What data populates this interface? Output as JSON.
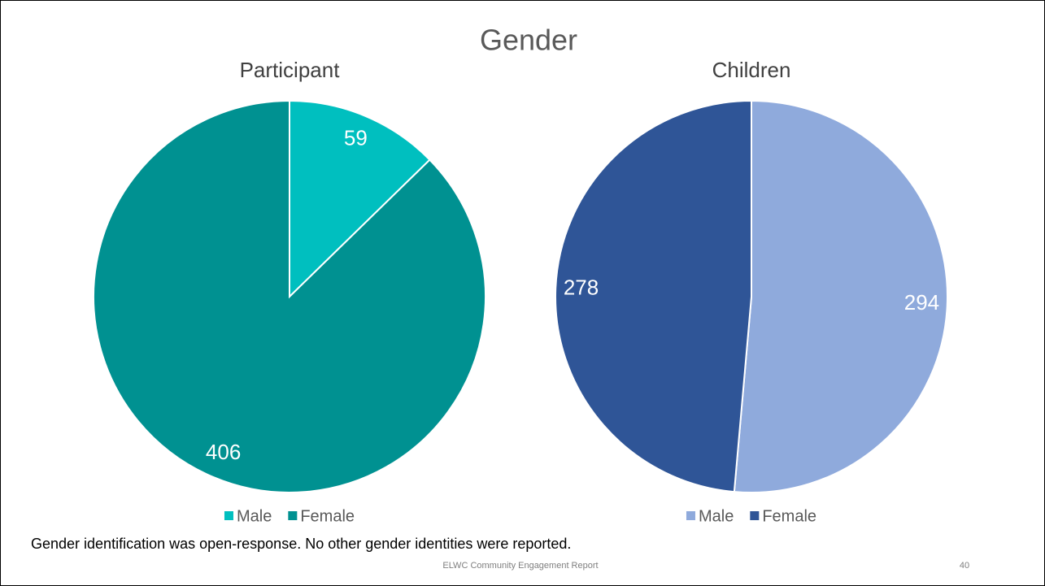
{
  "title": "Gender",
  "chart_data": [
    {
      "type": "pie",
      "title": "Participant",
      "categories": [
        "Male",
        "Female"
      ],
      "values": [
        59,
        406
      ],
      "colors": [
        "#00bfbf",
        "#009191"
      ]
    },
    {
      "type": "pie",
      "title": "Children",
      "categories": [
        "Male",
        "Female"
      ],
      "values": [
        294,
        278
      ],
      "colors": [
        "#8faadc",
        "#2f5597"
      ]
    }
  ],
  "note": "Gender identification was open-response. No other gender identities were reported.",
  "footer": "ELWC Community Engagement Report",
  "page_number": 40
}
